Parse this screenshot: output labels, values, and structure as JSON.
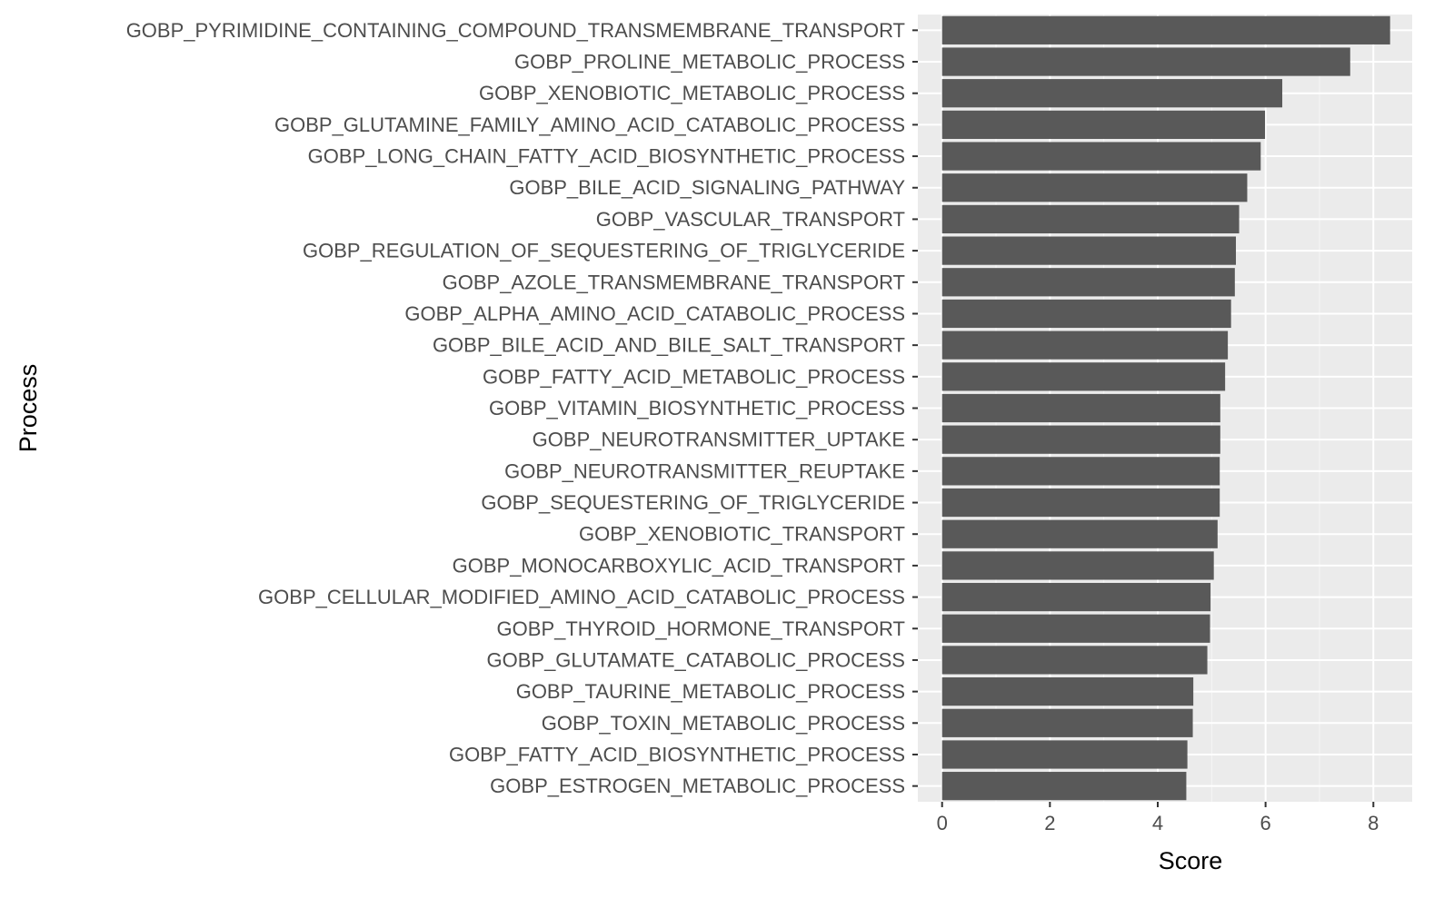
{
  "chart_data": {
    "type": "bar",
    "orientation": "horizontal",
    "xlabel": "Score",
    "ylabel": "Process",
    "xlim": [
      -0.45,
      8.72
    ],
    "x_ticks": [
      0,
      2,
      4,
      6,
      8
    ],
    "grid": true,
    "legend": "none",
    "colors": {
      "bar": "#595959",
      "panel": "#ebebeb",
      "grid_major": "#ffffff",
      "grid_minor": "#f5f5f5",
      "tick_text": "#4d4d4d",
      "axis_title": "#000000"
    },
    "categories": [
      "GOBP_PYRIMIDINE_CONTAINING_COMPOUND_TRANSMEMBRANE_TRANSPORT",
      "GOBP_PROLINE_METABOLIC_PROCESS",
      "GOBP_XENOBIOTIC_METABOLIC_PROCESS",
      "GOBP_GLUTAMINE_FAMILY_AMINO_ACID_CATABOLIC_PROCESS",
      "GOBP_LONG_CHAIN_FATTY_ACID_BIOSYNTHETIC_PROCESS",
      "GOBP_BILE_ACID_SIGNALING_PATHWAY",
      "GOBP_VASCULAR_TRANSPORT",
      "GOBP_REGULATION_OF_SEQUESTERING_OF_TRIGLYCERIDE",
      "GOBP_AZOLE_TRANSMEMBRANE_TRANSPORT",
      "GOBP_ALPHA_AMINO_ACID_CATABOLIC_PROCESS",
      "GOBP_BILE_ACID_AND_BILE_SALT_TRANSPORT",
      "GOBP_FATTY_ACID_METABOLIC_PROCESS",
      "GOBP_VITAMIN_BIOSYNTHETIC_PROCESS",
      "GOBP_NEUROTRANSMITTER_UPTAKE",
      "GOBP_NEUROTRANSMITTER_REUPTAKE",
      "GOBP_SEQUESTERING_OF_TRIGLYCERIDE",
      "GOBP_XENOBIOTIC_TRANSPORT",
      "GOBP_MONOCARBOXYLIC_ACID_TRANSPORT",
      "GOBP_CELLULAR_MODIFIED_AMINO_ACID_CATABOLIC_PROCESS",
      "GOBP_THYROID_HORMONE_TRANSPORT",
      "GOBP_GLUTAMATE_CATABOLIC_PROCESS",
      "GOBP_TAURINE_METABOLIC_PROCESS",
      "GOBP_TOXIN_METABOLIC_PROCESS",
      "GOBP_FATTY_ACID_BIOSYNTHETIC_PROCESS",
      "GOBP_ESTROGEN_METABOLIC_PROCESS"
    ],
    "values": [
      8.31,
      7.57,
      6.31,
      5.99,
      5.91,
      5.66,
      5.51,
      5.45,
      5.43,
      5.36,
      5.3,
      5.25,
      5.16,
      5.16,
      5.15,
      5.15,
      5.11,
      5.04,
      4.98,
      4.97,
      4.92,
      4.66,
      4.65,
      4.55,
      4.53
    ]
  }
}
